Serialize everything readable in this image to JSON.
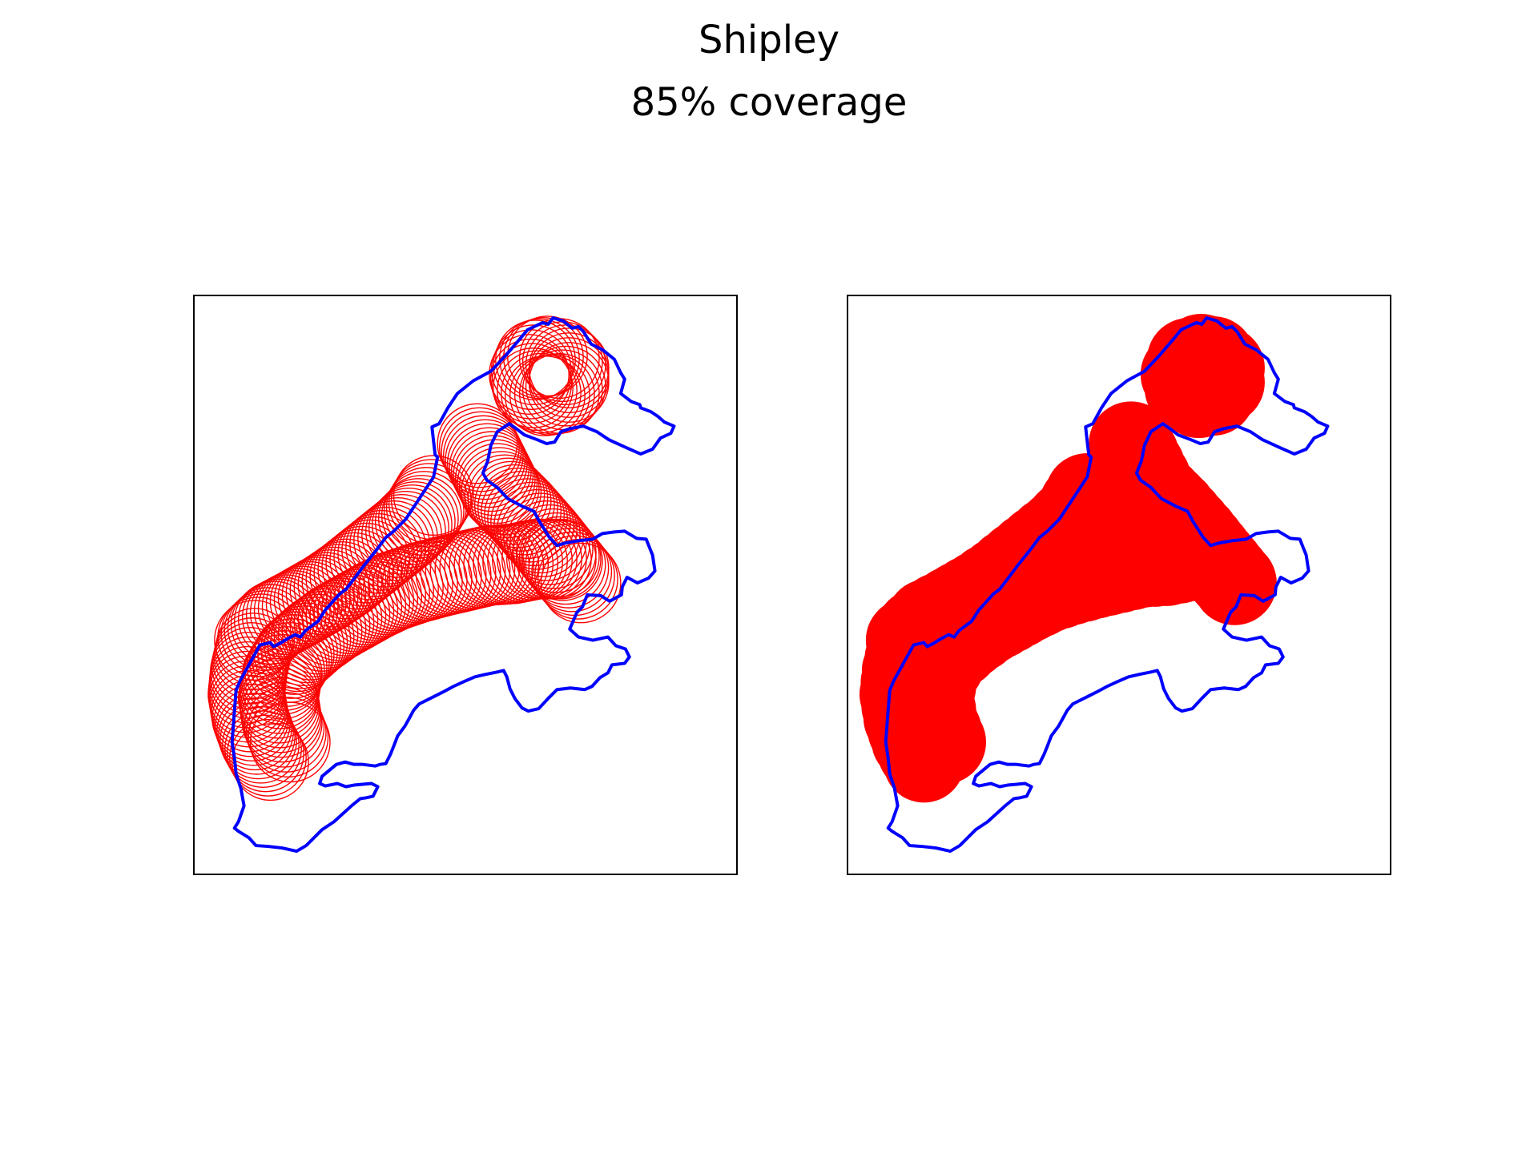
{
  "title": "Shipley",
  "subtitle": "85% coverage",
  "colors": {
    "boundary": "#0000ff",
    "coverage": "#ff0000",
    "frame": "#000000",
    "background": "#ffffff"
  },
  "panels": [
    {
      "style": "circle-outlines"
    },
    {
      "style": "filled-union"
    }
  ]
}
